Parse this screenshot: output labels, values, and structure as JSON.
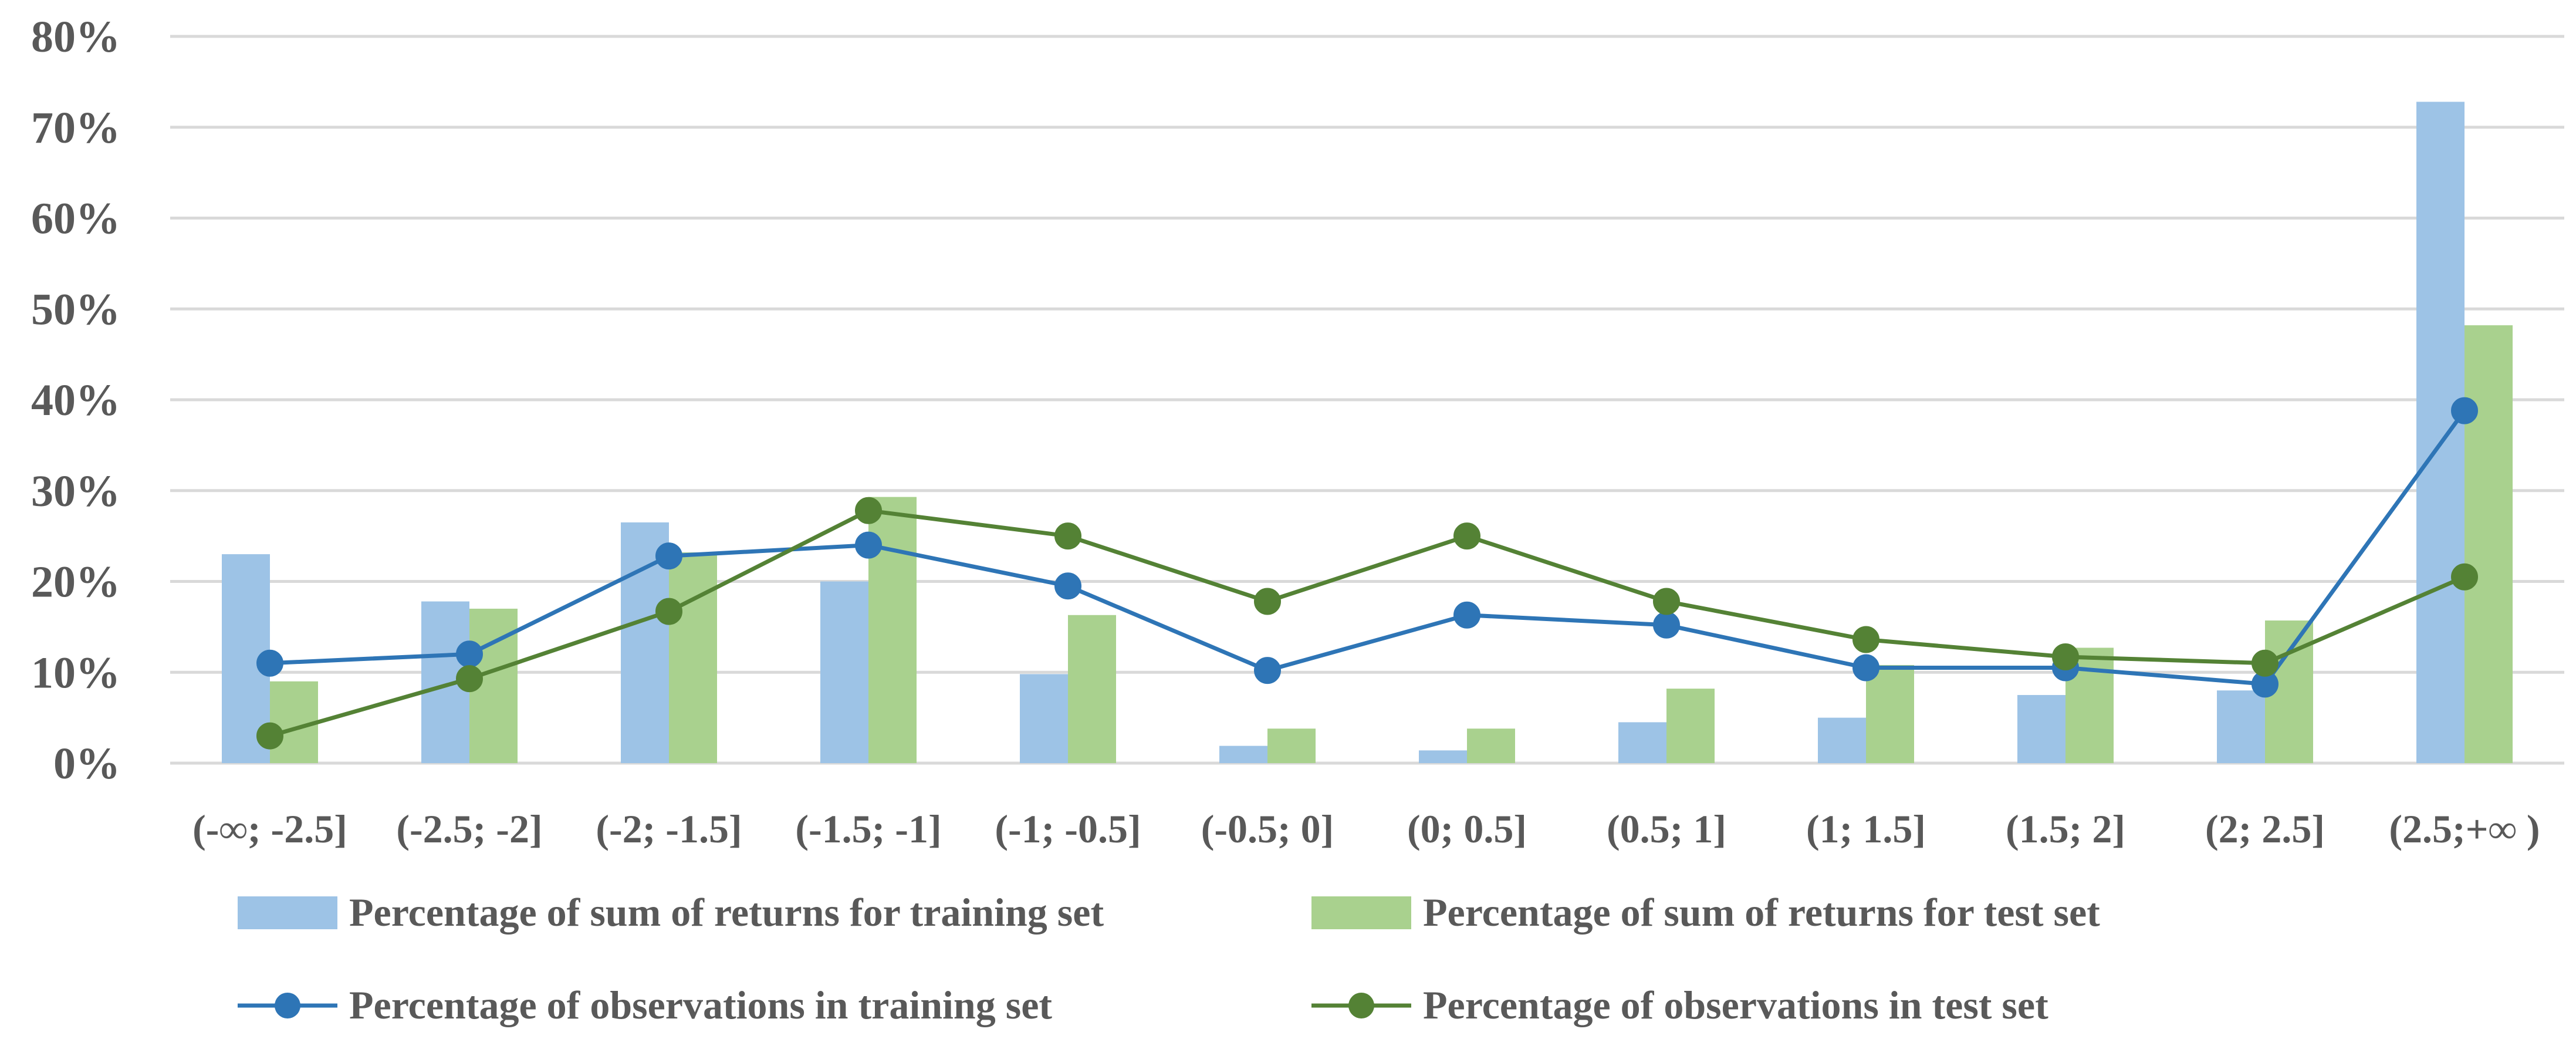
{
  "chart_data": {
    "type": "bar",
    "title": "",
    "xlabel": "",
    "ylabel": "",
    "ylim": [
      0,
      80
    ],
    "y_ticks": [
      0,
      10,
      20,
      30,
      40,
      50,
      60,
      70,
      80
    ],
    "y_tick_labels": [
      "0%",
      "10%",
      "20%",
      "30%",
      "40%",
      "50%",
      "60%",
      "70%",
      "80%"
    ],
    "grid": true,
    "legend_position": "bottom",
    "categories": [
      "(-∞; -2.5]",
      "(-2.5; -2]",
      "(-2; -1.5]",
      "(-1.5; -1]",
      "(-1; -0.5]",
      "(-0.5; 0]",
      "(0; 0.5]",
      "(0.5; 1]",
      "(1; 1.5]",
      "(1.5; 2]",
      "(2; 2.5]",
      "(2.5;+∞ )"
    ],
    "series": [
      {
        "name": "Percentage of sum of returns for training set",
        "kind": "bar",
        "color": "#9DC3E6",
        "values": [
          23.0,
          17.8,
          26.5,
          20.0,
          9.8,
          1.9,
          1.4,
          4.5,
          5.0,
          7.5,
          8.0,
          72.8
        ]
      },
      {
        "name": "Percentage of sum of returns for test set",
        "kind": "bar",
        "color": "#A9D18E",
        "values": [
          9.0,
          17.0,
          23.2,
          29.3,
          16.3,
          3.8,
          3.8,
          8.2,
          10.8,
          12.7,
          15.7,
          48.2
        ]
      },
      {
        "name": "Percentage of observations in training set",
        "kind": "line",
        "color": "#2E75B6",
        "values": [
          11.0,
          12.0,
          22.8,
          24.0,
          19.5,
          10.2,
          16.3,
          15.2,
          10.5,
          10.5,
          8.7,
          38.8
        ]
      },
      {
        "name": "Percentage of observations in test set",
        "kind": "line",
        "color": "#548235",
        "values": [
          3.0,
          9.3,
          16.7,
          27.8,
          25.0,
          17.8,
          25.0,
          17.8,
          13.6,
          11.7,
          11.0,
          20.5
        ]
      }
    ]
  }
}
